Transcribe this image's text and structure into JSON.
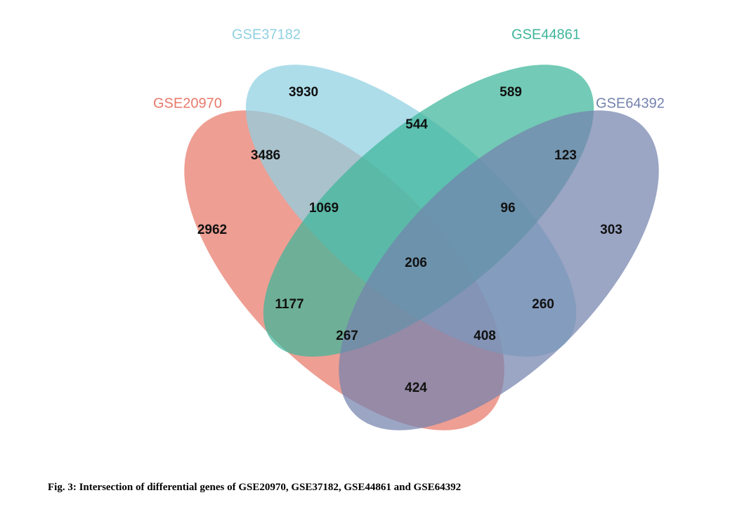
{
  "sets": [
    {
      "name": "GSE20970",
      "color": "#e8786a"
    },
    {
      "name": "GSE37182",
      "color": "#8fd0e2"
    },
    {
      "name": "GSE44861",
      "color": "#3db59a"
    },
    {
      "name": "GSE64392",
      "color": "#7482ad"
    }
  ],
  "regions": [
    3930,
    589,
    2962,
    303,
    3486,
    544,
    123,
    1069,
    96,
    206,
    1177,
    260,
    267,
    408,
    424
  ],
  "caption": "Fig. 3: Intersection of differential genes of GSE20970, GSE37182, GSE44861 and GSE64392"
}
